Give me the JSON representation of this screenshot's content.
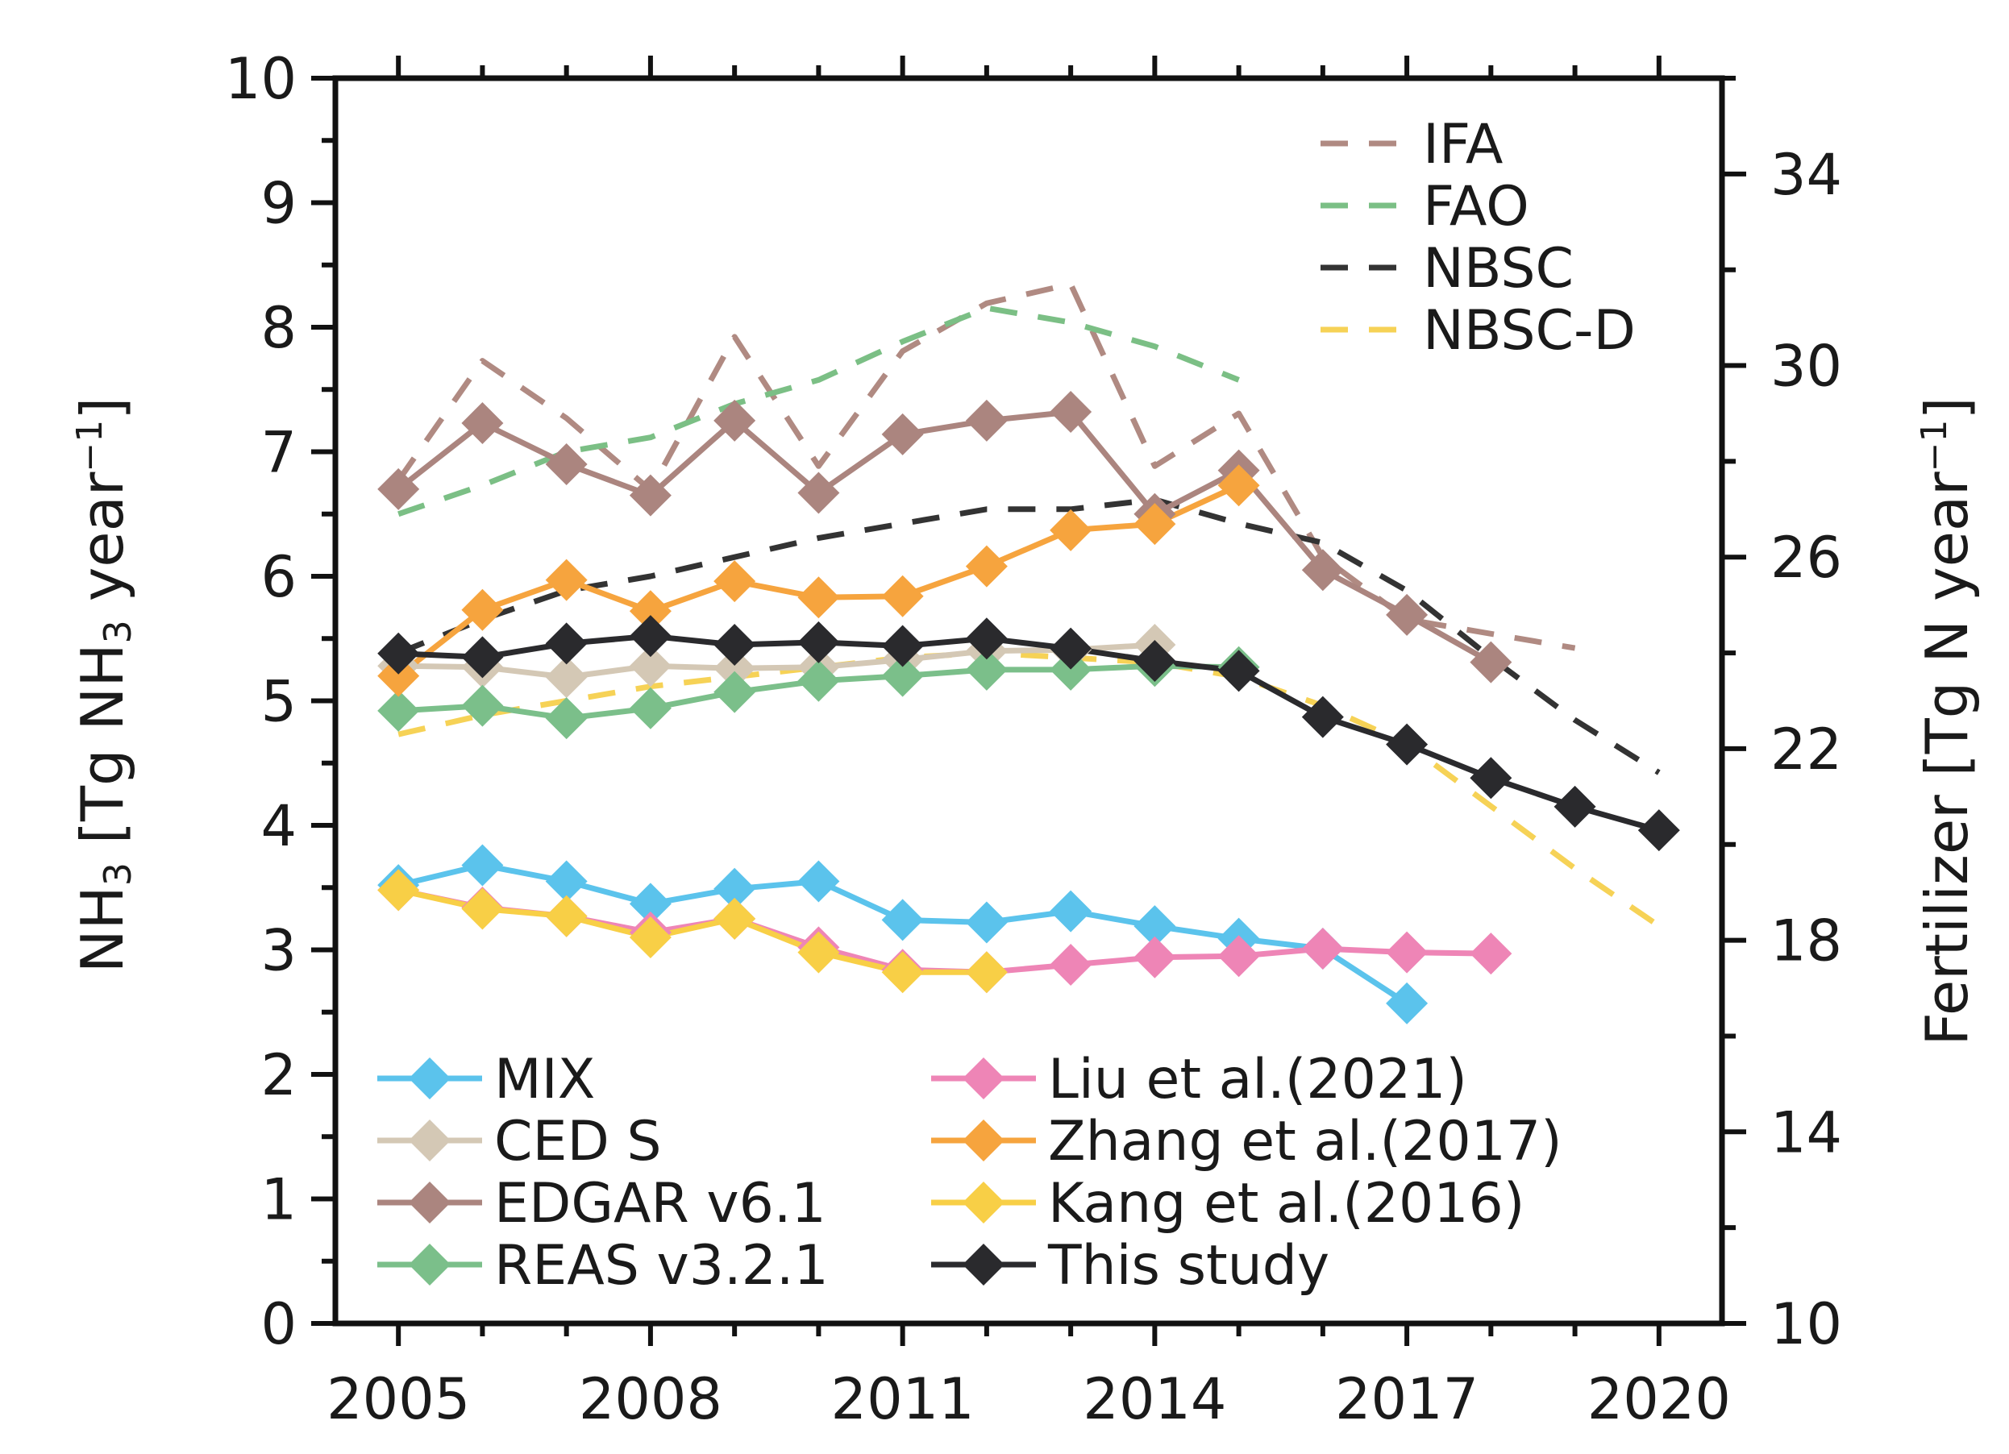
{
  "chart_data": {
    "type": "line",
    "title": "",
    "xlabel": "",
    "xlim": [
      2004.25,
      2020.75
    ],
    "x_ticks": [
      2005,
      2008,
      2011,
      2014,
      2017,
      2020
    ],
    "ylabel": {
      "prefix": "NH",
      "sub": "3",
      "mid": " [Tg NH",
      "sub2": "3",
      "suffix": " year",
      "sup": "−1",
      "end": "]"
    },
    "ylim": [
      0,
      10
    ],
    "y_ticks": [
      0,
      1,
      2,
      3,
      4,
      5,
      6,
      7,
      8,
      9,
      10
    ],
    "y2label": {
      "text": "Fertilizer [Tg N year",
      "sup": "−1",
      "end": "]"
    },
    "y2lim": [
      10,
      36
    ],
    "y2_ticks": [
      10,
      14,
      18,
      22,
      26,
      30,
      34
    ],
    "fertilizer_series": [
      {
        "name": "IFA",
        "color": "#b08a82",
        "axis": "right",
        "x": [
          2005,
          2006,
          2007,
          2008,
          2009,
          2010,
          2011,
          2012,
          2013,
          2014,
          2015,
          2016,
          2017,
          2018,
          2019
        ],
        "values": [
          27.6,
          30.1,
          28.9,
          27.4,
          30.6,
          27.9,
          30.3,
          31.3,
          31.7,
          27.9,
          29.0,
          26.0,
          24.7,
          24.4,
          24.1
        ]
      },
      {
        "name": "FAO",
        "color": "#7bbf85",
        "axis": "right",
        "x": [
          2005,
          2006,
          2007,
          2008,
          2009,
          2010,
          2011,
          2012,
          2013,
          2014,
          2015
        ],
        "values": [
          26.9,
          27.5,
          28.2,
          28.5,
          29.2,
          29.7,
          30.5,
          31.2,
          30.9,
          30.4,
          29.7
        ]
      },
      {
        "name": "NBSC",
        "color": "#333333",
        "axis": "right",
        "x": [
          2005,
          2006,
          2007,
          2008,
          2009,
          2010,
          2011,
          2012,
          2013,
          2014,
          2015,
          2016,
          2017,
          2018,
          2019,
          2020
        ],
        "values": [
          24.0,
          24.7,
          25.3,
          25.6,
          26.0,
          26.4,
          26.7,
          27.0,
          27.0,
          27.2,
          26.7,
          26.3,
          25.3,
          23.9,
          22.6,
          21.5
        ]
      },
      {
        "name": "NBSC-D",
        "color": "#f6d256",
        "axis": "right",
        "x": [
          2005,
          2006,
          2007,
          2008,
          2009,
          2010,
          2011,
          2012,
          2013,
          2014,
          2015,
          2016,
          2017,
          2018,
          2019,
          2020
        ],
        "values": [
          22.3,
          22.7,
          23.0,
          23.3,
          23.5,
          23.7,
          23.9,
          24.0,
          23.9,
          23.8,
          23.5,
          22.9,
          22.1,
          20.8,
          19.5,
          18.3
        ]
      }
    ],
    "emission_series": [
      {
        "name": "MIX",
        "color": "#5bc3ec",
        "axis": "left",
        "x": [
          2005,
          2006,
          2007,
          2008,
          2009,
          2010,
          2011,
          2012,
          2013,
          2014,
          2015,
          2016,
          2017
        ],
        "values": [
          3.52,
          3.68,
          3.55,
          3.37,
          3.49,
          3.55,
          3.24,
          3.22,
          3.31,
          3.19,
          3.09,
          3.01,
          2.57
        ]
      },
      {
        "name": "CED S",
        "color": "#d4c8b5",
        "axis": "left",
        "x": [
          2005,
          2006,
          2007,
          2008,
          2009,
          2010,
          2011,
          2012,
          2013,
          2014
        ],
        "values": [
          5.28,
          5.27,
          5.19,
          5.28,
          5.26,
          5.27,
          5.33,
          5.4,
          5.41,
          5.45
        ]
      },
      {
        "name": "EDGAR v6.1",
        "color": "#ab857f",
        "axis": "left",
        "x": [
          2005,
          2006,
          2007,
          2008,
          2009,
          2010,
          2011,
          2012,
          2013,
          2014,
          2015,
          2016,
          2017,
          2018
        ],
        "values": [
          6.7,
          7.23,
          6.9,
          6.65,
          7.25,
          6.67,
          7.14,
          7.25,
          7.32,
          6.5,
          6.85,
          6.05,
          5.69,
          5.31
        ]
      },
      {
        "name": "REAS v3.2.1",
        "color": "#7bbf8a",
        "axis": "left",
        "x": [
          2005,
          2006,
          2007,
          2008,
          2009,
          2010,
          2011,
          2012,
          2013,
          2014,
          2015
        ],
        "values": [
          4.92,
          4.96,
          4.86,
          4.94,
          5.07,
          5.16,
          5.2,
          5.25,
          5.25,
          5.28,
          5.27
        ]
      },
      {
        "name": "Liu et al.(2021)",
        "color": "#ee85b6",
        "axis": "left",
        "x": [
          2005,
          2006,
          2007,
          2008,
          2009,
          2010,
          2011,
          2012,
          2013,
          2014,
          2015,
          2016,
          2017,
          2018
        ],
        "values": [
          3.48,
          3.34,
          3.27,
          3.14,
          3.25,
          3.02,
          2.84,
          2.82,
          2.88,
          2.94,
          2.95,
          3.01,
          2.98,
          2.97
        ]
      },
      {
        "name": "Zhang et al.(2017)",
        "color": "#f6a43e",
        "axis": "left",
        "x": [
          2005,
          2006,
          2007,
          2008,
          2009,
          2010,
          2011,
          2012,
          2013,
          2014,
          2015
        ],
        "values": [
          5.2,
          5.73,
          5.97,
          5.72,
          5.96,
          5.83,
          5.84,
          6.08,
          6.37,
          6.42,
          6.73
        ]
      },
      {
        "name": "Kang et al.(2016)",
        "color": "#f8cf46",
        "axis": "left",
        "x": [
          2005,
          2006,
          2007,
          2008,
          2009,
          2010,
          2011,
          2012
        ],
        "values": [
          3.48,
          3.33,
          3.27,
          3.1,
          3.25,
          2.98,
          2.82,
          2.82
        ]
      },
      {
        "name": "This study",
        "color": "#2a2a2d",
        "axis": "left",
        "x": [
          2005,
          2006,
          2007,
          2008,
          2009,
          2010,
          2011,
          2012,
          2013,
          2014,
          2015,
          2016,
          2017,
          2018,
          2019,
          2020
        ],
        "values": [
          5.38,
          5.35,
          5.46,
          5.52,
          5.45,
          5.47,
          5.44,
          5.5,
          5.42,
          5.32,
          5.24,
          4.87,
          4.65,
          4.38,
          4.15,
          3.96
        ]
      }
    ],
    "legend_fertilizer_position": "top-right",
    "legend_emission_position": "bottom"
  }
}
